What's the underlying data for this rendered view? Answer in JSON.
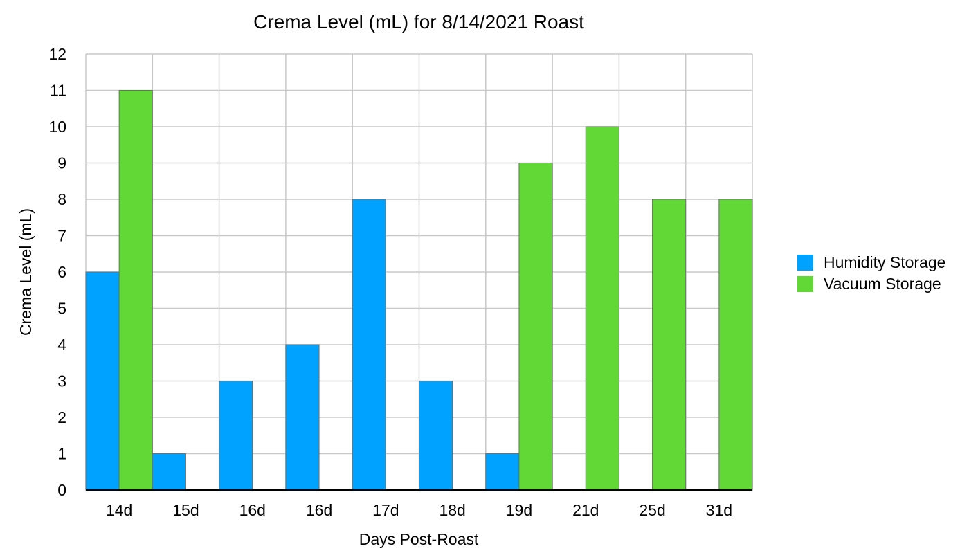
{
  "chart_data": {
    "type": "bar",
    "title": "Crema Level (mL) for 8/14/2021 Roast",
    "xlabel": "Days Post-Roast",
    "ylabel": "Crema Level (mL)",
    "categories": [
      "14d",
      "15d",
      "16d",
      "16d",
      "17d",
      "18d",
      "19d",
      "21d",
      "25d",
      "31d"
    ],
    "series": [
      {
        "name": "Humidity Storage",
        "color": "#00a2ff",
        "values": [
          6,
          1,
          3,
          4,
          8,
          3,
          1,
          0,
          0,
          0
        ]
      },
      {
        "name": "Vacuum Storage",
        "color": "#61d836",
        "values": [
          11,
          0,
          0,
          0,
          0,
          0,
          9,
          10,
          8,
          8
        ]
      }
    ],
    "ylim": [
      0,
      12
    ],
    "yticks": [
      0,
      1,
      2,
      3,
      4,
      5,
      6,
      7,
      8,
      9,
      10,
      11,
      12
    ],
    "grid": true,
    "legend_position": "right"
  }
}
